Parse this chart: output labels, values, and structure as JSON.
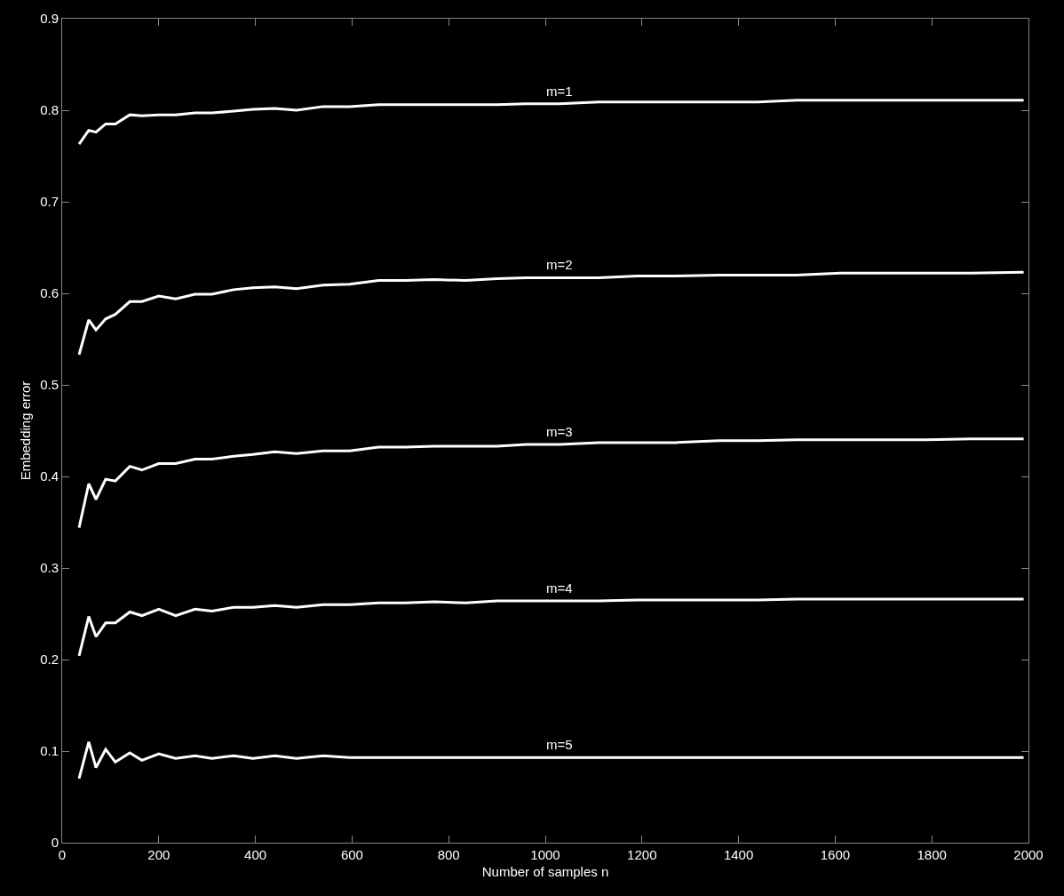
{
  "chart_data": {
    "type": "line",
    "xlabel": "Number of samples n",
    "ylabel": "Embedding error",
    "x": [
      35,
      55,
      70,
      90,
      110,
      140,
      165,
      200,
      235,
      275,
      310,
      355,
      395,
      440,
      485,
      540,
      595,
      655,
      710,
      770,
      835,
      900,
      960,
      1030,
      1110,
      1190,
      1270,
      1360,
      1440,
      1520,
      1610,
      1700,
      1790,
      1880,
      1990
    ],
    "series": [
      {
        "name": "m=1",
        "color": "#ffffff",
        "values": [
          0.763,
          0.778,
          0.776,
          0.785,
          0.785,
          0.795,
          0.794,
          0.795,
          0.795,
          0.797,
          0.797,
          0.799,
          0.801,
          0.802,
          0.8,
          0.804,
          0.804,
          0.806,
          0.806,
          0.806,
          0.806,
          0.806,
          0.807,
          0.807,
          0.809,
          0.809,
          0.809,
          0.809,
          0.809,
          0.811,
          0.811,
          0.811,
          0.811,
          0.811,
          0.811
        ]
      },
      {
        "name": "m=2",
        "color": "#ffffff",
        "values": [
          0.533,
          0.571,
          0.56,
          0.572,
          0.577,
          0.591,
          0.591,
          0.597,
          0.594,
          0.599,
          0.599,
          0.604,
          0.606,
          0.607,
          0.605,
          0.609,
          0.61,
          0.614,
          0.614,
          0.615,
          0.614,
          0.616,
          0.617,
          0.617,
          0.617,
          0.619,
          0.619,
          0.62,
          0.62,
          0.62,
          0.622,
          0.622,
          0.622,
          0.622,
          0.623
        ]
      },
      {
        "name": "m=3",
        "color": "#ffffff",
        "values": [
          0.344,
          0.392,
          0.375,
          0.397,
          0.395,
          0.411,
          0.407,
          0.414,
          0.414,
          0.419,
          0.419,
          0.422,
          0.424,
          0.427,
          0.425,
          0.428,
          0.428,
          0.432,
          0.432,
          0.433,
          0.433,
          0.433,
          0.435,
          0.435,
          0.437,
          0.437,
          0.437,
          0.439,
          0.439,
          0.44,
          0.44,
          0.44,
          0.44,
          0.441,
          0.441
        ]
      },
      {
        "name": "m=4",
        "color": "#ffffff",
        "values": [
          0.204,
          0.247,
          0.225,
          0.24,
          0.24,
          0.252,
          0.248,
          0.255,
          0.248,
          0.255,
          0.253,
          0.257,
          0.257,
          0.259,
          0.257,
          0.26,
          0.26,
          0.262,
          0.262,
          0.263,
          0.262,
          0.264,
          0.264,
          0.264,
          0.264,
          0.265,
          0.265,
          0.265,
          0.265,
          0.266,
          0.266,
          0.266,
          0.266,
          0.266,
          0.266
        ]
      },
      {
        "name": "m=5",
        "color": "#ffffff",
        "values": [
          0.07,
          0.11,
          0.082,
          0.102,
          0.088,
          0.098,
          0.09,
          0.097,
          0.092,
          0.095,
          0.092,
          0.095,
          0.092,
          0.095,
          0.092,
          0.095,
          0.093,
          0.093,
          0.093,
          0.093,
          0.093,
          0.093,
          0.093,
          0.093,
          0.093,
          0.093,
          0.093,
          0.093,
          0.093,
          0.093,
          0.093,
          0.093,
          0.093,
          0.093,
          0.093
        ]
      }
    ],
    "xlim": [
      0,
      2000
    ],
    "xticks": [
      0,
      200,
      400,
      600,
      800,
      1000,
      1200,
      1400,
      1600,
      1800,
      2000
    ],
    "ylim": [
      0,
      0.9
    ],
    "yticks": [
      0,
      0.1,
      0.2,
      0.3,
      0.4,
      0.5,
      0.6,
      0.7,
      0.8,
      0.9
    ],
    "grid": false,
    "legend": false,
    "marker": "none",
    "line_style": "solid"
  }
}
